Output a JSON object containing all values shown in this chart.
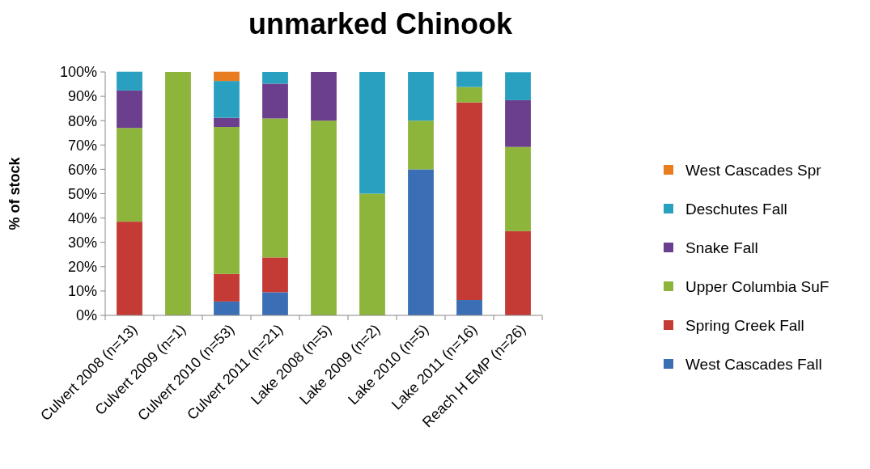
{
  "chart_data": {
    "type": "bar",
    "title": "unmarked Chinook",
    "ylabel": "% of stock",
    "stacked": true,
    "legend": "right",
    "grid": false,
    "categories": [
      "Culvert 2008 (n=13)",
      "Culvert 2009 (n=1)",
      "Culvert 2010 (n=53)",
      "Culvert 2011 (n=21)",
      "Lake 2008 (n=5)",
      "Lake 2009 (n=2)",
      "Lake 2010 (n=5)",
      "Lake 2011 (n=16)",
      "Reach H EMP (n=26)"
    ],
    "ylim": [
      0,
      100
    ],
    "yticks": [
      {
        "value": 0,
        "label": "0%"
      },
      {
        "value": 10,
        "label": "10%"
      },
      {
        "value": 20,
        "label": "20%"
      },
      {
        "value": 30,
        "label": "30%"
      },
      {
        "value": 40,
        "label": "40%"
      },
      {
        "value": 50,
        "label": "50%"
      },
      {
        "value": 60,
        "label": "60%"
      },
      {
        "value": 70,
        "label": "70%"
      },
      {
        "value": 80,
        "label": "80%"
      },
      {
        "value": 90,
        "label": "90%"
      },
      {
        "value": 100,
        "label": "100%"
      }
    ],
    "series": [
      {
        "name": "West Cascades Fall",
        "color": "#3a6fb5",
        "values": [
          0,
          0,
          5.7,
          9.5,
          0,
          0,
          60,
          6.3,
          0
        ]
      },
      {
        "name": "Spring Creek Fall",
        "color": "#c43a35",
        "values": [
          38.5,
          0,
          11.3,
          14.3,
          0,
          0,
          0,
          81.2,
          34.6
        ]
      },
      {
        "name": "Upper Columbia SuF",
        "color": "#8db53c",
        "values": [
          38.5,
          100,
          60.4,
          57.1,
          80,
          50,
          20,
          6.3,
          34.6
        ]
      },
      {
        "name": "Snake Fall",
        "color": "#6b3f8e",
        "values": [
          15.4,
          0,
          3.8,
          14.3,
          20,
          0,
          0,
          0,
          19.2
        ]
      },
      {
        "name": "Deschutes Fall",
        "color": "#2aa0c0",
        "values": [
          7.7,
          0,
          15.1,
          4.8,
          0,
          50,
          20,
          6.3,
          11.5
        ]
      },
      {
        "name": "West Cascades Spr",
        "color": "#e87c1e",
        "values": [
          0,
          0,
          3.8,
          0,
          0,
          0,
          0,
          0,
          0
        ]
      }
    ]
  }
}
